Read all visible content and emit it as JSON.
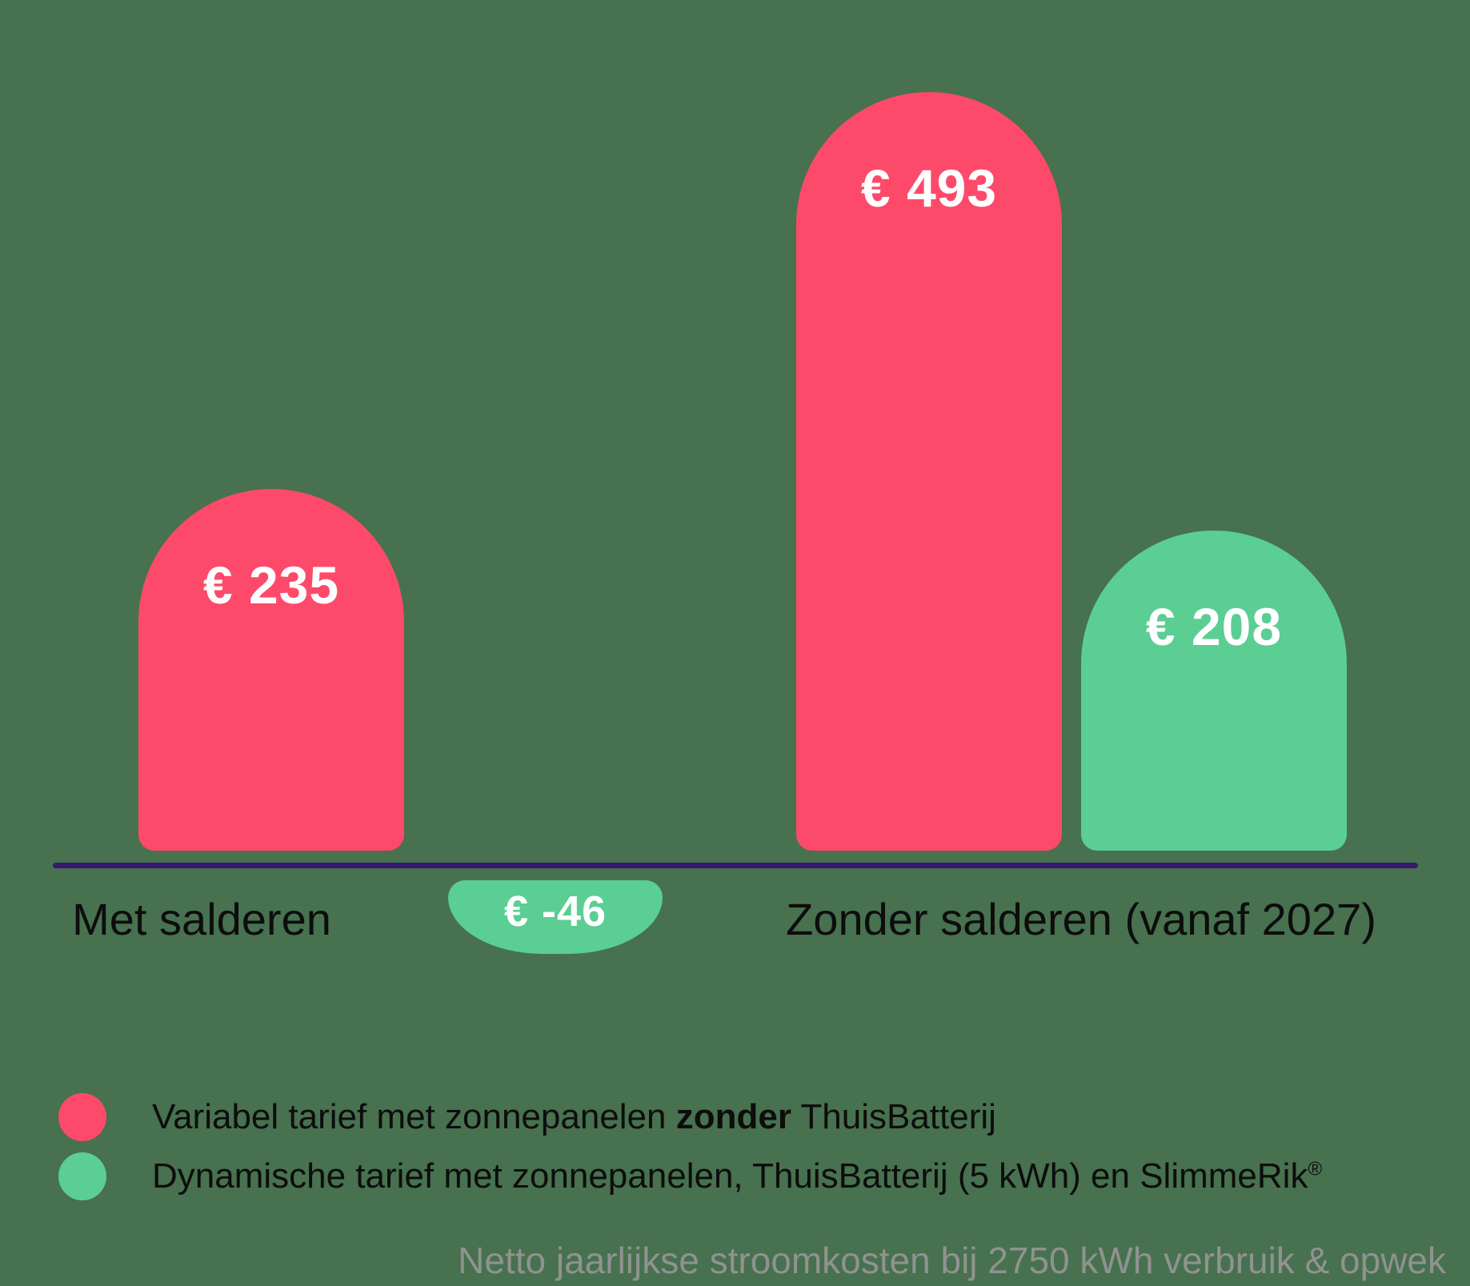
{
  "colors": {
    "background": "#47714F",
    "pink": "#FD4A6A",
    "green": "#5ACE93",
    "axis_line": "#351A6E",
    "label_text": "#0D0D0D",
    "value_text": "#FFFFFF",
    "footnote_text": "#8F938F"
  },
  "chart_data": {
    "type": "bar",
    "title": "",
    "categories": [
      "Met salderen",
      "Zonder salderen (vanaf 2027)"
    ],
    "series": [
      {
        "name": "Variabel tarief met zonnepanelen zonder ThuisBatterij",
        "color": "#FD4A6A",
        "values": [
          235,
          493
        ]
      },
      {
        "name": "Dynamische tarief met zonnepanelen, ThuisBatterij (5 kWh) en SlimmeRik®",
        "color": "#5ACE93",
        "values": [
          null,
          208
        ]
      }
    ],
    "bars": [
      {
        "category": "Met salderen",
        "series": "variabel",
        "value": 235,
        "label": "€ 235"
      },
      {
        "category": "Zonder salderen (vanaf 2027)",
        "series": "variabel",
        "value": 493,
        "label": "€ 493"
      },
      {
        "category": "Zonder salderen (vanaf 2027)",
        "series": "dynamisch",
        "value": 208,
        "label": "€ 208"
      }
    ],
    "badge": {
      "attached_to": "Met salderen",
      "value": -46,
      "label": "€ -46"
    },
    "x_axis": {
      "labels": [
        "Met salderen",
        "Zonder salderen (vanaf 2027)"
      ]
    },
    "ylim": [
      0,
      493
    ],
    "grid": false,
    "legend_position": "bottom-left",
    "footnote": "Netto jaarlijkse stroomkosten bij 2750 kWh verbruik & opwek"
  },
  "legend": {
    "items": [
      {
        "color": "#FD4A6A",
        "text_before": "Variabel tarief met zonnepanelen ",
        "text_bold": "zonder",
        "text_after": " ThuisBatterij"
      },
      {
        "color": "#5ACE93",
        "text": "Dynamische tarief met zonnepanelen, ThuisBatterij (5 kWh) en SlimmeRik",
        "superscript": "®"
      }
    ]
  }
}
